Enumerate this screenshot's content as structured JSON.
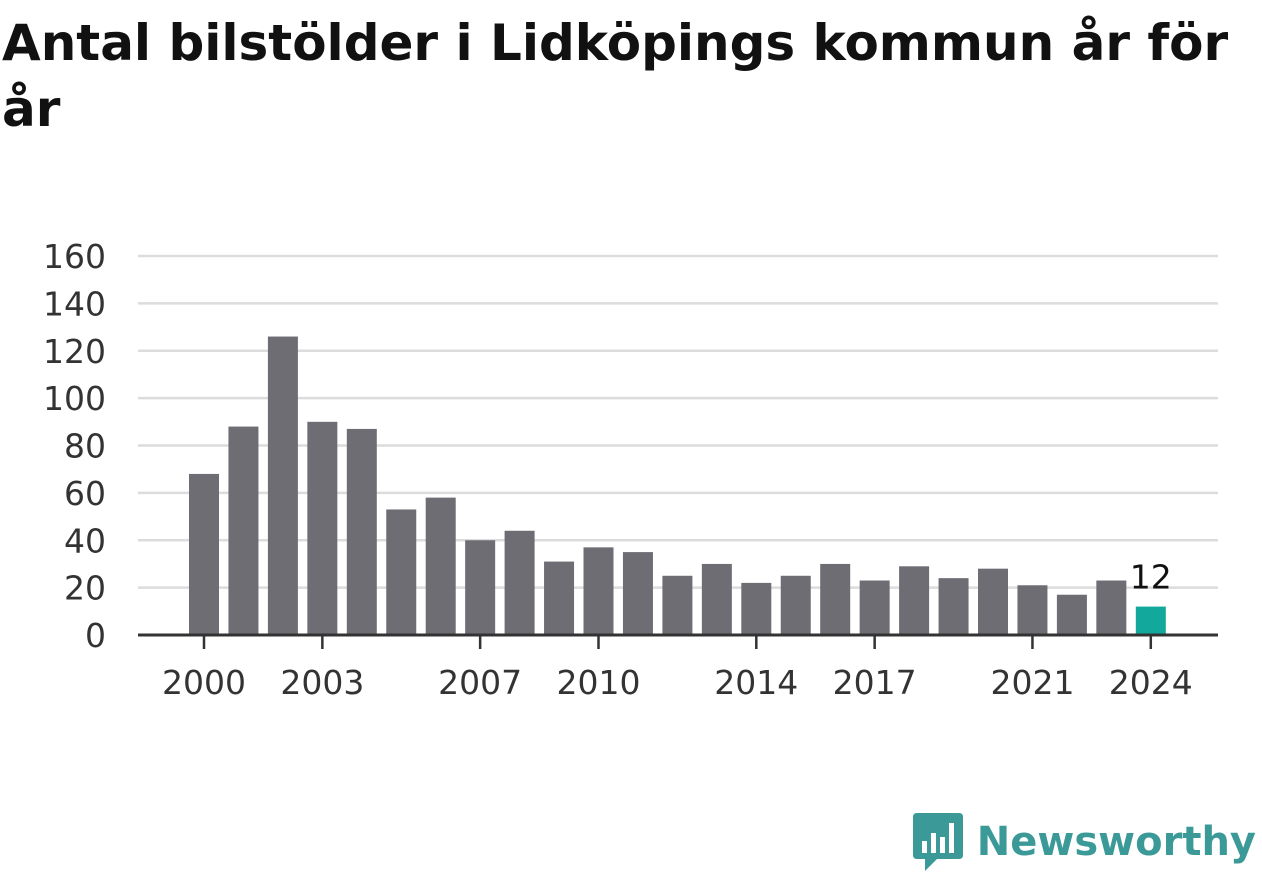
{
  "title": "Antal bilstölder i Lidköpings kommun år för år",
  "brand": {
    "name": "Newsworthy",
    "color": "#3b9a97",
    "icon": "newsworthy-logo-icon"
  },
  "colors": {
    "bar": "#6e6d73",
    "highlight": "#12a89c",
    "grid": "#dcdcdc",
    "axis": "#333333"
  },
  "chart_data": {
    "type": "bar",
    "title": "Antal bilstölder i Lidköpings kommun år för år",
    "xlabel": "",
    "ylabel": "",
    "categories": [
      2000,
      2001,
      2002,
      2003,
      2004,
      2005,
      2006,
      2007,
      2008,
      2009,
      2010,
      2011,
      2012,
      2013,
      2014,
      2015,
      2016,
      2017,
      2018,
      2019,
      2020,
      2021,
      2022,
      2023,
      2024
    ],
    "values": [
      68,
      88,
      126,
      90,
      87,
      53,
      58,
      40,
      44,
      31,
      37,
      35,
      25,
      30,
      22,
      25,
      30,
      23,
      29,
      24,
      28,
      21,
      17,
      23,
      12
    ],
    "highlight_index": 24,
    "highlight_label": "12",
    "x_tick_labels": [
      "2000",
      "2003",
      "2007",
      "2010",
      "2014",
      "2017",
      "2021",
      "2024"
    ],
    "y_ticks": [
      "0",
      "20",
      "40",
      "60",
      "80",
      "100",
      "120",
      "140",
      "160"
    ],
    "ylim": [
      0,
      160
    ],
    "grid": true,
    "legend": "none"
  }
}
